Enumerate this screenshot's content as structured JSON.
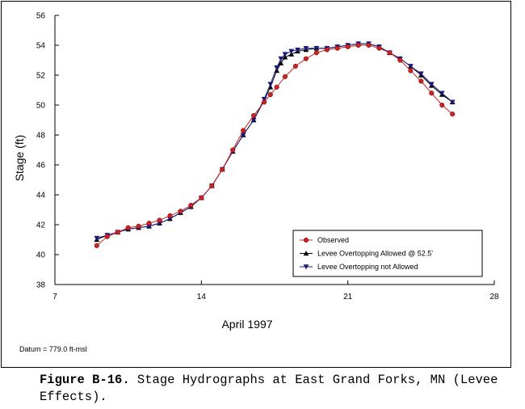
{
  "chart_data": {
    "type": "line",
    "title": "",
    "xlabel": "April 1997",
    "ylabel": "Stage (ft)",
    "xlim": [
      7,
      28
    ],
    "ylim": [
      38,
      56
    ],
    "x_ticks": [
      7,
      14,
      21,
      28
    ],
    "x_tick_labels": [
      "7",
      "14",
      "21",
      "28"
    ],
    "y_ticks": [
      38,
      40,
      42,
      44,
      46,
      48,
      50,
      52,
      54,
      56
    ],
    "y_tick_labels": [
      "38",
      "40",
      "42",
      "44",
      "46",
      "48",
      "50",
      "52",
      "54",
      "56"
    ],
    "legend_placement": "bottom-right",
    "grid": false,
    "series": [
      {
        "name": "Observed",
        "color": "#cc2222",
        "marker": "circle",
        "x": [
          9.0,
          9.5,
          10.0,
          10.5,
          11.0,
          11.5,
          12.0,
          12.5,
          13.0,
          13.5,
          14.0,
          14.5,
          15.0,
          15.5,
          16.0,
          16.5,
          17.0,
          17.3,
          17.6,
          18.0,
          18.5,
          19.0,
          19.5,
          20.0,
          20.5,
          21.0,
          21.5,
          22.0,
          22.5,
          23.0,
          23.5,
          24.0,
          24.5,
          25.0,
          25.5,
          26.0
        ],
        "y": [
          40.6,
          41.2,
          41.5,
          41.8,
          41.9,
          42.1,
          42.3,
          42.6,
          42.9,
          43.3,
          43.8,
          44.6,
          45.7,
          47.0,
          48.3,
          49.3,
          50.2,
          50.7,
          51.2,
          51.9,
          52.6,
          53.1,
          53.5,
          53.7,
          53.8,
          53.9,
          54.0,
          54.0,
          53.8,
          53.5,
          53.0,
          52.3,
          51.6,
          50.8,
          50.0,
          49.4
        ]
      },
      {
        "name": "Levee Overtopping Allowed @ 52.5'",
        "color": "#000000",
        "marker": "triangle-up",
        "x": [
          9.0,
          9.5,
          10.0,
          10.5,
          11.0,
          11.5,
          12.0,
          12.5,
          13.0,
          13.5,
          14.0,
          14.5,
          15.0,
          15.5,
          16.0,
          16.5,
          17.0,
          17.3,
          17.6,
          17.8,
          18.0,
          18.3,
          18.6,
          19.0,
          19.5,
          20.0,
          20.5,
          21.0,
          21.5,
          22.0,
          22.5,
          23.0,
          23.5,
          24.0,
          24.5,
          25.0,
          25.5,
          26.0
        ],
        "y": [
          41.0,
          41.3,
          41.5,
          41.7,
          41.8,
          41.9,
          42.1,
          42.4,
          42.8,
          43.2,
          43.8,
          44.6,
          45.7,
          46.9,
          48.0,
          49.0,
          50.3,
          51.2,
          52.3,
          52.8,
          53.2,
          53.4,
          53.6,
          53.7,
          53.8,
          53.8,
          53.9,
          54.0,
          54.1,
          54.1,
          53.9,
          53.5,
          53.1,
          52.6,
          52.0,
          51.3,
          50.7,
          50.2
        ]
      },
      {
        "name": "Levee Overtopping not Allowed",
        "color": "#1a1a7a",
        "marker": "triangle-down",
        "x": [
          9.0,
          9.5,
          10.0,
          10.5,
          11.0,
          11.5,
          12.0,
          12.5,
          13.0,
          13.5,
          14.0,
          14.5,
          15.0,
          15.5,
          16.0,
          16.5,
          17.0,
          17.3,
          17.6,
          17.8,
          18.0,
          18.3,
          18.6,
          19.0,
          19.5,
          20.0,
          20.5,
          21.0,
          21.5,
          22.0,
          22.5,
          23.0,
          23.5,
          24.0,
          24.5,
          25.0,
          25.5,
          26.0
        ],
        "y": [
          41.1,
          41.3,
          41.5,
          41.7,
          41.8,
          41.9,
          42.1,
          42.4,
          42.8,
          43.2,
          43.8,
          44.6,
          45.7,
          46.9,
          48.0,
          49.0,
          50.4,
          51.4,
          52.5,
          53.1,
          53.4,
          53.6,
          53.7,
          53.8,
          53.8,
          53.8,
          53.9,
          54.0,
          54.1,
          54.1,
          53.9,
          53.5,
          53.1,
          52.6,
          52.1,
          51.4,
          50.8,
          50.2
        ]
      }
    ],
    "footnote": "Datum = 779.0 ft-msl"
  },
  "caption": {
    "label": "Figure B-16.",
    "text": " Stage Hydrographs at East Grand Forks, MN (Levee Effects)."
  }
}
